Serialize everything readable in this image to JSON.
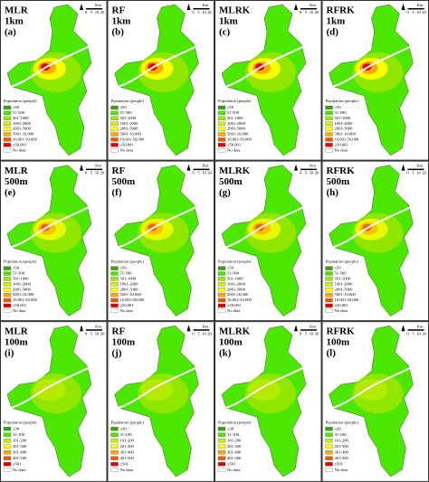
{
  "rows": [
    {
      "resolution": "1km",
      "legend_title": "Population (people)",
      "scale_unit": "Km",
      "scale_labels": [
        "0",
        "5",
        "10",
        "20"
      ],
      "legend": [
        {
          "label": "≤50",
          "color": "#38a800"
        },
        {
          "label": "51-500",
          "color": "#4ce600"
        },
        {
          "label": "501-1000",
          "color": "#a3e600"
        },
        {
          "label": "1001-2000",
          "color": "#d4f000"
        },
        {
          "label": "2001-5000",
          "color": "#ffff00"
        },
        {
          "label": "5001-10,000",
          "color": "#ffaa00"
        },
        {
          "label": "10,001-50,000",
          "color": "#ff5500"
        },
        {
          "label": "≥50,001",
          "color": "#e60000"
        },
        {
          "label": "No data",
          "color": "#ffffff"
        }
      ],
      "panels": [
        {
          "method": "MLR",
          "letter": "(a)"
        },
        {
          "method": "RF",
          "letter": "(b)"
        },
        {
          "method": "MLRK",
          "letter": "(c)"
        },
        {
          "method": "RFRK",
          "letter": "(d)"
        }
      ]
    },
    {
      "resolution": "500m",
      "legend_title": "Population (people)",
      "scale_unit": "Km",
      "scale_labels": [
        "0",
        "5",
        "10",
        "20"
      ],
      "legend": [
        {
          "label": "≤50",
          "color": "#38a800"
        },
        {
          "label": "51-500",
          "color": "#4ce600"
        },
        {
          "label": "501-1000",
          "color": "#a3e600"
        },
        {
          "label": "1001-2000",
          "color": "#d4f000"
        },
        {
          "label": "2001-5000",
          "color": "#ffff00"
        },
        {
          "label": "5001-10,000",
          "color": "#ffaa00"
        },
        {
          "label": "10,001-50,000",
          "color": "#ff5500"
        },
        {
          "label": "≥50,001",
          "color": "#e60000"
        },
        {
          "label": "No data",
          "color": "#ffffff"
        }
      ],
      "panels": [
        {
          "method": "MLR",
          "letter": "(e)"
        },
        {
          "method": "RF",
          "letter": "(f)"
        },
        {
          "method": "MLRK",
          "letter": "(g)"
        },
        {
          "method": "RFRK",
          "letter": "(h)"
        }
      ]
    },
    {
      "resolution": "100m",
      "legend_title": "Population (people)",
      "scale_unit": "Km",
      "scale_labels": [
        "0",
        "5",
        "10",
        "20"
      ],
      "legend": [
        {
          "label": "≤30",
          "color": "#38a800"
        },
        {
          "label": "31-100",
          "color": "#4ce600"
        },
        {
          "label": "101-200",
          "color": "#c8f000"
        },
        {
          "label": "201-300",
          "color": "#ffff00"
        },
        {
          "label": "301-400",
          "color": "#ffaa00"
        },
        {
          "label": "401-500",
          "color": "#ff5500"
        },
        {
          "label": "≥501",
          "color": "#e60000"
        },
        {
          "label": "No data",
          "color": "#ffffff"
        }
      ],
      "panels": [
        {
          "method": "MLR",
          "letter": "(i)"
        },
        {
          "method": "RF",
          "letter": "(j)"
        },
        {
          "method": "MLRK",
          "letter": "(k)"
        },
        {
          "method": "RFRK",
          "letter": "(l)"
        }
      ]
    }
  ]
}
